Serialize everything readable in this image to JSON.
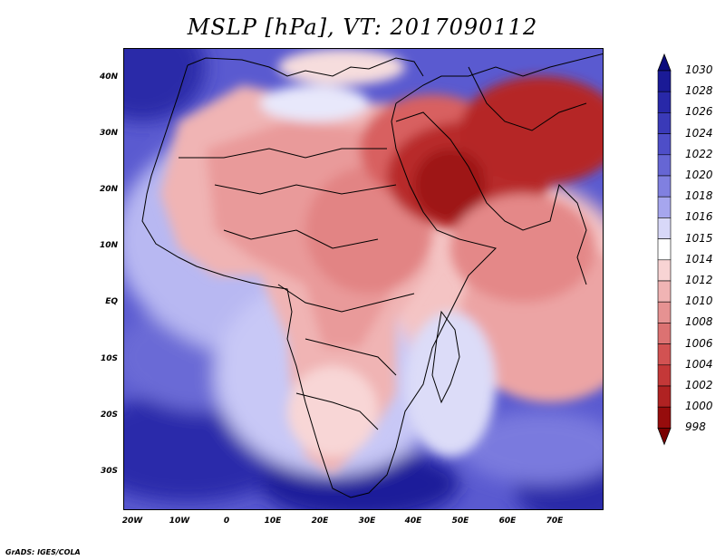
{
  "title": "MSLP [hPa], VT: 2017090112",
  "y_axis_labels": [
    "40N",
    "30N",
    "20N",
    "10N",
    "EQ",
    "10S",
    "20S",
    "30S"
  ],
  "x_axis_labels": [
    "20W",
    "10W",
    "0",
    "10E",
    "20E",
    "30E",
    "40E",
    "50E",
    "60E",
    "70E"
  ],
  "credit": "GrADS: IGES/COLA",
  "colorbar": {
    "levels": [
      "1030",
      "1028",
      "1026",
      "1024",
      "1022",
      "1020",
      "1018",
      "1016",
      "1015",
      "1014",
      "1012",
      "1010",
      "1008",
      "1006",
      "1004",
      "1002",
      "1000",
      "998"
    ],
    "colors": [
      "#0a0a7c",
      "#1a1a96",
      "#2828a8",
      "#3a3ab8",
      "#4e4ec8",
      "#6666d4",
      "#8080e0",
      "#a6a6ee",
      "#d8d8f8",
      "#ffffff",
      "#f8d4d4",
      "#f0b4b4",
      "#e69292",
      "#dc7272",
      "#d25252",
      "#c43838",
      "#b02222",
      "#960c0c",
      "#7a0000"
    ]
  }
}
